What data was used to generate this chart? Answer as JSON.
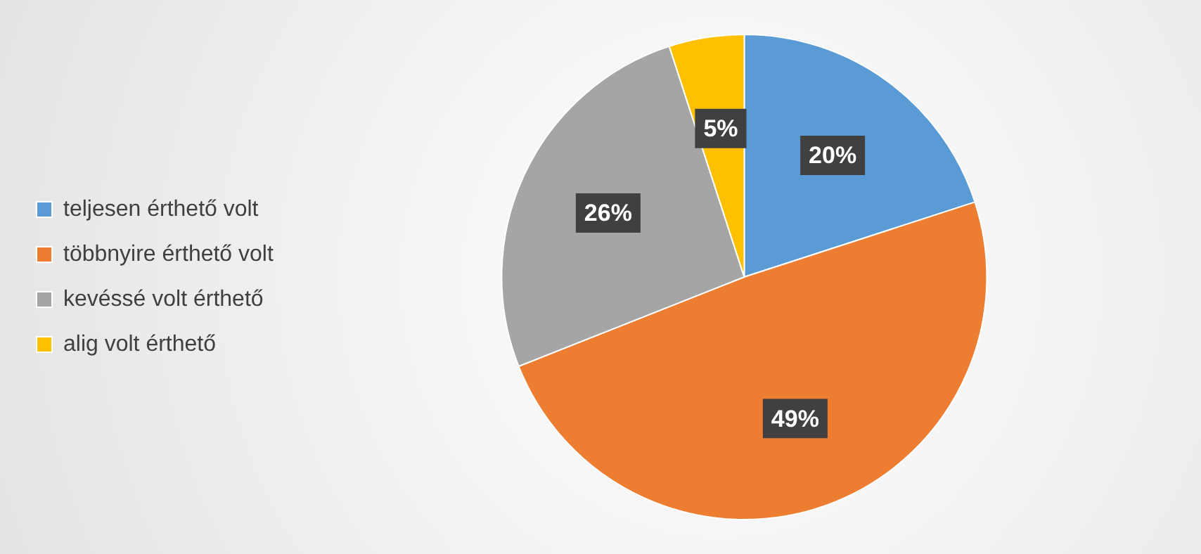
{
  "chart_data": {
    "type": "pie",
    "categories": [
      "teljesen érthető volt",
      "többnyire érthető volt",
      "kevéssé volt érthető",
      "alig volt érthető"
    ],
    "values": [
      20,
      49,
      26,
      5
    ],
    "colors": [
      "#5b9bd5",
      "#ed7d31",
      "#a5a5a5",
      "#ffc000"
    ],
    "value_labels": [
      "20%",
      "49%",
      "26%",
      "5%"
    ],
    "legend": "left"
  }
}
